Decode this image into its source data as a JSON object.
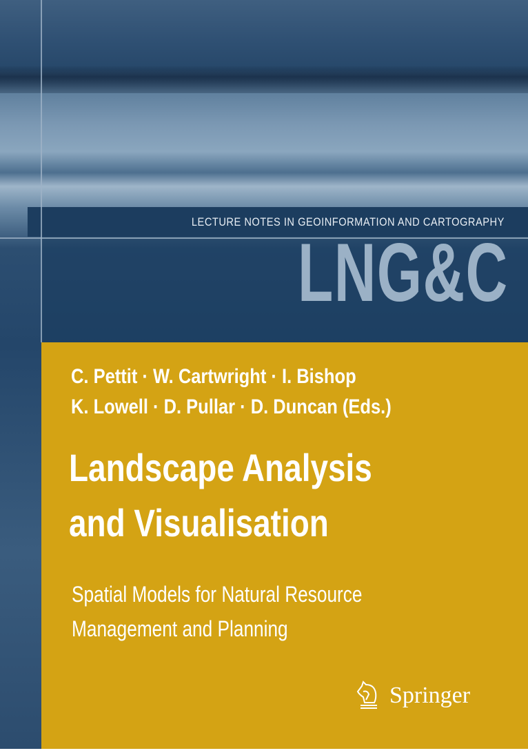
{
  "cover": {
    "series_title": "LECTURE NOTES IN GEOINFORMATION AND CARTOGRAPHY",
    "series_logo": "LNG&C",
    "editors_line1": "C. Pettit · W. Cartwright · I. Bishop",
    "editors_line2": "K. Lowell · D. Pullar · D. Duncan (Eds.)",
    "title_line1": "Landscape Analysis",
    "title_line2": "and Visualisation",
    "subtitle_line1": "Spatial Models for Natural Resource",
    "subtitle_line2": "Management and Planning",
    "publisher": "Springer",
    "publisher_icon": "chess-knight-icon"
  },
  "colors": {
    "panel": "#d4a314",
    "banner": "#1c3d5f",
    "photo_tint": "#2c4e71"
  }
}
